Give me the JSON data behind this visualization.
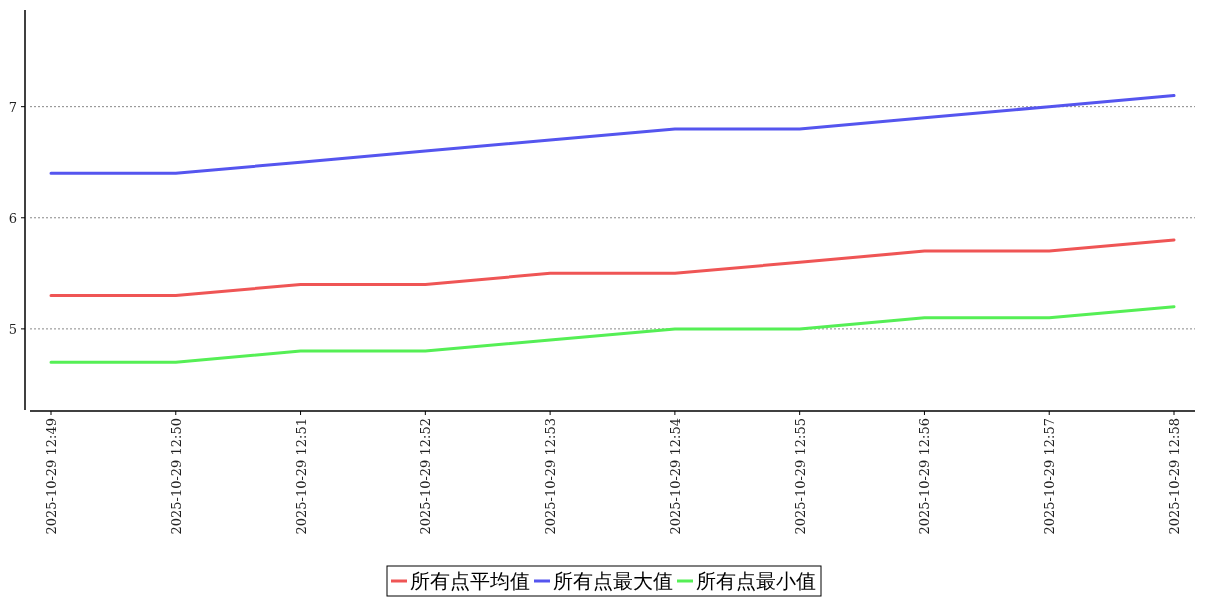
{
  "chart_data": {
    "type": "line",
    "categories": [
      "2025-10-29 12:49",
      "2025-10-29 12:50",
      "2025-10-29 12:51",
      "2025-10-29 12:52",
      "2025-10-29 12:53",
      "2025-10-29 12:54",
      "2025-10-29 12:55",
      "2025-10-29 12:56",
      "2025-10-29 12:57",
      "2025-10-29 12:58"
    ],
    "series": [
      {
        "name": "所有点平均值",
        "color": "#ef5555",
        "values": [
          5.3,
          5.3,
          5.4,
          5.4,
          5.5,
          5.5,
          5.6,
          5.7,
          5.7,
          5.8
        ]
      },
      {
        "name": "所有点最大值",
        "color": "#5555ef",
        "values": [
          6.4,
          6.4,
          6.5,
          6.6,
          6.7,
          6.8,
          6.8,
          6.9,
          7.0,
          7.1
        ]
      },
      {
        "name": "所有点最小值",
        "color": "#55ef55",
        "values": [
          4.7,
          4.7,
          4.8,
          4.8,
          4.9,
          5.0,
          5.0,
          5.1,
          5.1,
          5.2
        ]
      }
    ],
    "ylim": [
      4.27,
      7.87
    ],
    "yticks": [
      5,
      6,
      7
    ],
    "grid": "y",
    "legend": "bottom",
    "marker": "none",
    "line_style": "solid"
  }
}
